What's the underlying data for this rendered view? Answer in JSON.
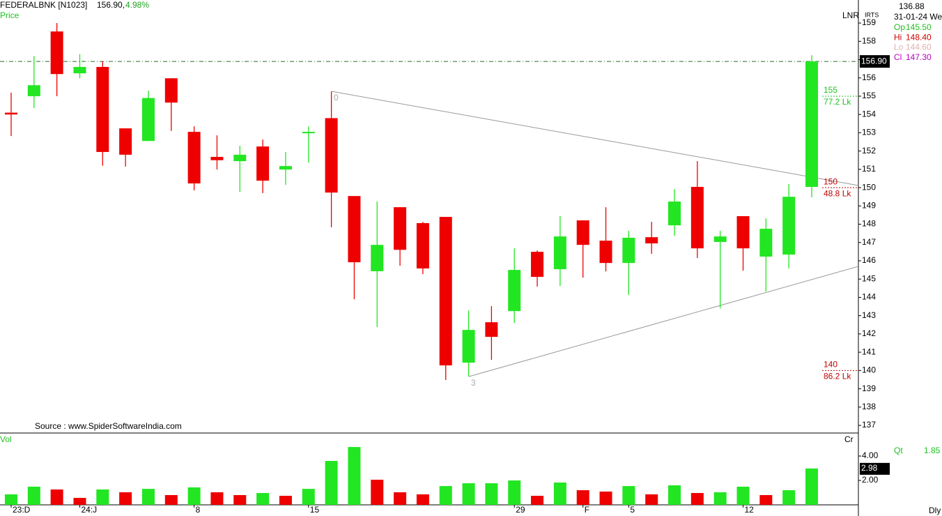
{
  "header": {
    "symbol": "FEDERALBNK [N1023]",
    "last": "156.90,",
    "change": "4.98%",
    "panel": "Price",
    "source": "Source : www.SpiderSoftwareIndia.com",
    "lnr": "LNR",
    "irts": "IRTS"
  },
  "info": {
    "top": "136.88",
    "date": "31-01-24 We",
    "rows": [
      {
        "label": "Op",
        "value": "145.50",
        "color": "#22c022"
      },
      {
        "label": "Hi",
        "value": "148.40",
        "color": "#d00000"
      },
      {
        "label": "Lo",
        "value": "144.60",
        "color": "#e0b0b0"
      },
      {
        "label": "Cl",
        "value": "147.30",
        "color": "#c000c0"
      }
    ],
    "qt": {
      "label": "Qt",
      "value": "1.85"
    },
    "period": "Dly"
  },
  "chart_data": [
    {
      "type": "candlestick",
      "up_color": "#22e622",
      "down_color": "#ee0000",
      "categories": [
        "23:D",
        null,
        null,
        "24:J",
        null,
        null,
        null,
        null,
        "8",
        null,
        null,
        null,
        null,
        "15",
        null,
        null,
        null,
        null,
        null,
        null,
        null,
        null,
        "29",
        null,
        null,
        "F",
        null,
        "5",
        null,
        null,
        null,
        null,
        "12",
        null,
        null,
        null
      ],
      "open": [
        154.1,
        155.0,
        158.54,
        156.25,
        156.6,
        153.24,
        152.55,
        155.98,
        153.05,
        151.68,
        151.45,
        152.25,
        150.99,
        153.0,
        153.8,
        149.54,
        145.43,
        148.93,
        148.06,
        148.4,
        140.43,
        142.64,
        143.25,
        146.49,
        145.54,
        148.21,
        147.1,
        145.88,
        147.29,
        147.94,
        150.04,
        147.03,
        148.44,
        146.23,
        146.34,
        150.04
      ],
      "high": [
        155.2,
        157.2,
        159.0,
        157.3,
        156.9,
        153.24,
        155.3,
        155.98,
        153.35,
        152.86,
        152.29,
        152.63,
        151.95,
        153.35,
        155.26,
        149.54,
        149.24,
        148.93,
        148.13,
        148.4,
        143.29,
        143.52,
        146.68,
        146.57,
        148.44,
        148.21,
        148.93,
        147.64,
        148.13,
        149.92,
        151.45,
        147.64,
        148.44,
        148.32,
        150.19,
        157.24
      ],
      "low": [
        152.82,
        154.35,
        155.0,
        155.98,
        151.2,
        151.15,
        152.55,
        153.1,
        149.85,
        150.99,
        149.77,
        149.7,
        150.15,
        151.37,
        147.83,
        143.9,
        142.38,
        145.73,
        145.27,
        139.48,
        139.67,
        140.58,
        142.6,
        144.59,
        144.62,
        145.08,
        145.42,
        144.13,
        146.38,
        147.37,
        146.15,
        143.4,
        145.46,
        144.32,
        145.58,
        149.47
      ],
      "close": [
        154.0,
        155.6,
        156.21,
        156.6,
        151.95,
        151.8,
        154.9,
        154.65,
        150.23,
        151.5,
        151.8,
        150.38,
        151.18,
        153.05,
        149.73,
        145.92,
        146.87,
        146.6,
        145.58,
        140.28,
        142.22,
        141.84,
        145.5,
        145.12,
        147.33,
        146.87,
        145.88,
        147.26,
        146.95,
        149.24,
        146.68,
        147.33,
        146.68,
        147.75,
        149.5,
        156.9
      ],
      "ylim": [
        136.62,
        160.26
      ],
      "yticks": [
        137,
        138,
        139,
        140,
        141,
        142,
        143,
        144,
        145,
        146,
        147,
        148,
        149,
        150,
        151,
        152,
        153,
        154,
        155,
        156,
        157,
        158,
        159
      ],
      "last": {
        "value": 156.9,
        "label": "156.90"
      },
      "levels": [
        {
          "value": 155,
          "volume": "77.2 Lk",
          "color": "#22c022"
        },
        {
          "value": 150,
          "volume": "48.8 Lk",
          "color": "#c00000"
        },
        {
          "value": 140,
          "volume": "86.2 Lk",
          "color": "#c00000"
        }
      ],
      "annotations": [
        "0",
        "3"
      ]
    },
    {
      "type": "bar",
      "title": "Vol",
      "unit": "Cr",
      "values": [
        0.86,
        1.49,
        1.26,
        0.57,
        1.26,
        1.03,
        1.31,
        0.8,
        1.43,
        1.03,
        0.8,
        0.97,
        0.74,
        1.31,
        3.6,
        4.74,
        2.06,
        1.03,
        0.86,
        1.54,
        1.77,
        1.77,
        2.0,
        0.74,
        1.83,
        1.2,
        1.09,
        1.54,
        0.86,
        1.6,
        0.97,
        1.03,
        1.49,
        0.8,
        1.2,
        2.98
      ],
      "colors": [
        "#22e622",
        "#22e622",
        "#ee0000",
        "#ee0000",
        "#22e622",
        "#ee0000",
        "#22e622",
        "#ee0000",
        "#22e622",
        "#ee0000",
        "#ee0000",
        "#22e622",
        "#ee0000",
        "#22e622",
        "#22e622",
        "#22e622",
        "#ee0000",
        "#ee0000",
        "#ee0000",
        "#22e622",
        "#22e622",
        "#22e622",
        "#22e622",
        "#ee0000",
        "#22e622",
        "#ee0000",
        "#ee0000",
        "#22e622",
        "#ee0000",
        "#22e622",
        "#ee0000",
        "#22e622",
        "#22e622",
        "#ee0000",
        "#22e622",
        "#22e622"
      ],
      "ylim": [
        0,
        5.83
      ],
      "yticks": [
        {
          "value": 2,
          "label": "2.00"
        },
        {
          "value": 4,
          "label": "4.00"
        }
      ],
      "last": {
        "value": 2.98,
        "label": "2.98"
      }
    }
  ]
}
